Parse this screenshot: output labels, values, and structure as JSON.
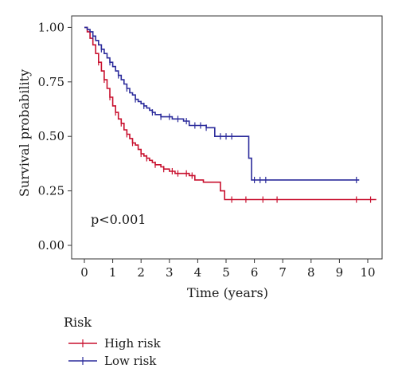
{
  "chart_data": {
    "type": "line",
    "subtype": "kaplan-meier",
    "title": "",
    "xlabel": "Time (years)",
    "ylabel": "Survival probability",
    "xlim": [
      0,
      10.3
    ],
    "ylim": [
      0,
      1.05
    ],
    "xticks": [
      "0",
      "1",
      "2",
      "3",
      "4",
      "5",
      "6",
      "7",
      "8",
      "9",
      "10"
    ],
    "yticks": [
      "0.00",
      "0.25",
      "0.50",
      "0.75",
      "1.00"
    ],
    "grid": false,
    "annotation": "p<0.001",
    "legend": {
      "title": "Risk",
      "placement": "bottom-left"
    },
    "series": [
      {
        "name": "High risk",
        "color": "#c8102e",
        "x": [
          0,
          0.1,
          0.2,
          0.3,
          0.4,
          0.5,
          0.6,
          0.7,
          0.8,
          0.9,
          1.0,
          1.1,
          1.2,
          1.3,
          1.4,
          1.5,
          1.6,
          1.7,
          1.8,
          1.9,
          2.0,
          2.1,
          2.2,
          2.3,
          2.4,
          2.5,
          2.6,
          2.7,
          2.8,
          3.0,
          3.2,
          3.4,
          3.7,
          3.9,
          4.2,
          4.8,
          4.95,
          10.3
        ],
        "y": [
          1.0,
          0.98,
          0.95,
          0.92,
          0.88,
          0.84,
          0.8,
          0.76,
          0.72,
          0.68,
          0.64,
          0.61,
          0.58,
          0.56,
          0.53,
          0.51,
          0.49,
          0.47,
          0.46,
          0.44,
          0.42,
          0.41,
          0.4,
          0.39,
          0.38,
          0.37,
          0.37,
          0.36,
          0.35,
          0.34,
          0.33,
          0.33,
          0.32,
          0.3,
          0.29,
          0.25,
          0.21,
          0.21
        ],
        "censor_x": [
          0.5,
          0.7,
          0.9,
          1.1,
          1.3,
          1.5,
          1.7,
          2.0,
          2.2,
          2.5,
          2.8,
          3.1,
          3.3,
          3.6,
          3.8,
          5.2,
          5.7,
          6.3,
          6.8,
          9.6,
          10.1
        ]
      },
      {
        "name": "Low risk",
        "color": "#2b2b9b",
        "x": [
          0,
          0.1,
          0.2,
          0.3,
          0.4,
          0.5,
          0.6,
          0.7,
          0.8,
          0.9,
          1.0,
          1.1,
          1.2,
          1.3,
          1.4,
          1.5,
          1.6,
          1.7,
          1.8,
          1.9,
          2.0,
          2.1,
          2.2,
          2.3,
          2.4,
          2.5,
          2.7,
          2.9,
          3.1,
          3.3,
          3.5,
          3.7,
          4.0,
          4.3,
          4.6,
          5.0,
          5.3,
          5.8,
          5.9,
          9.7
        ],
        "y": [
          1.0,
          0.99,
          0.98,
          0.96,
          0.94,
          0.92,
          0.9,
          0.88,
          0.86,
          0.84,
          0.82,
          0.8,
          0.78,
          0.76,
          0.74,
          0.72,
          0.7,
          0.69,
          0.67,
          0.66,
          0.65,
          0.64,
          0.63,
          0.62,
          0.61,
          0.6,
          0.59,
          0.59,
          0.58,
          0.58,
          0.57,
          0.55,
          0.55,
          0.54,
          0.5,
          0.5,
          0.5,
          0.4,
          0.3,
          0.3
        ],
        "censor_x": [
          0.3,
          0.6,
          0.9,
          1.2,
          1.5,
          1.8,
          2.1,
          2.4,
          2.7,
          3.0,
          3.3,
          3.6,
          3.9,
          4.1,
          4.3,
          4.8,
          5.0,
          5.2,
          6.0,
          6.2,
          6.4,
          9.6
        ]
      }
    ]
  }
}
